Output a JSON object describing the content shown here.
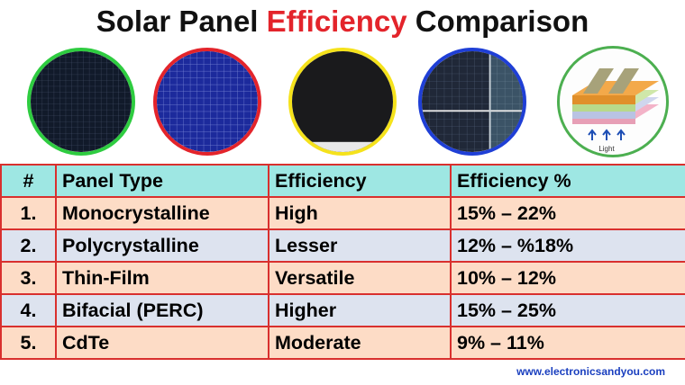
{
  "title": {
    "part1": "Solar Panel ",
    "accent": "Efficiency",
    "part2": " Comparison"
  },
  "colors": {
    "title_accent": "#e3242b",
    "table_border": "#d9302e",
    "header_bg": "#9ee7e3",
    "row_odd_bg": "#fddcc6",
    "row_even_bg": "#dde3ef",
    "ring_green": "#2ecc40",
    "ring_red": "#e3242b",
    "ring_yellow": "#f5e21b",
    "ring_blue": "#1f3fd6",
    "website": "#1a3fbf"
  },
  "diagram": {
    "light_label": "Light"
  },
  "table": {
    "headers": [
      "#",
      "Panel Type",
      "Efficiency",
      "Efficiency %"
    ],
    "rows": [
      [
        "1.",
        "Monocrystalline",
        "High",
        "15% – 22%"
      ],
      [
        "2.",
        "Polycrystalline",
        "Lesser",
        "12% – %18%"
      ],
      [
        "3.",
        "Thin-Film",
        "Versatile",
        "10% – 12%"
      ],
      [
        "4.",
        "Bifacial (PERC)",
        "Higher",
        "15% – 25%"
      ],
      [
        "5.",
        "CdTe",
        "Moderate",
        "9% – 11%"
      ]
    ]
  },
  "footer": {
    "website": "www.electronicsandyou.com"
  }
}
